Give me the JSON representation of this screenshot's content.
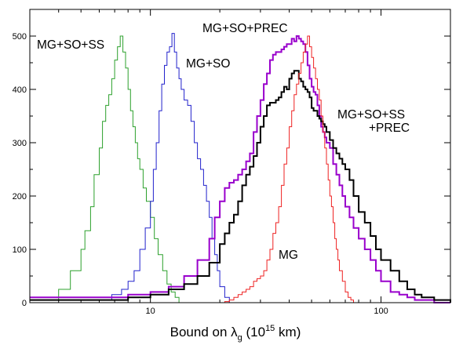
{
  "chart_data": {
    "type": "histogram",
    "x_scale": "log",
    "xlim": [
      3,
      200
    ],
    "ylim": [
      0,
      550
    ],
    "x_ticks": [
      10,
      100
    ],
    "x_tick_labels": [
      "10",
      "100"
    ],
    "y_ticks": [
      0,
      100,
      200,
      300,
      400,
      500
    ],
    "y_tick_labels": [
      "0",
      "100",
      "200",
      "300",
      "400",
      "500"
    ],
    "xlabel": {
      "main": "Bound on λ",
      "sub": "g",
      "paren": " (10",
      "sup": "15",
      "unit": " km)"
    },
    "ylabel": "",
    "grid": false,
    "legend": "none",
    "series": [
      {
        "name": "MG+SO+SS",
        "label_lines": [
          "MG+SO+SS"
        ],
        "color": "#2ca02c",
        "stroke_width": 1,
        "x": [
          3,
          4,
          4.5,
          5,
          5.2,
          5.5,
          5.7,
          6,
          6.2,
          6.4,
          6.6,
          6.8,
          7,
          7.2,
          7.4,
          7.6,
          7.8,
          8,
          8.2,
          8.4,
          8.6,
          8.8,
          9,
          9.3,
          9.6,
          10,
          10.4,
          10.8,
          11.3,
          11.8,
          12.3,
          12.8,
          13.3
        ],
        "y": [
          5,
          25,
          60,
          100,
          135,
          180,
          240,
          290,
          340,
          370,
          390,
          420,
          455,
          480,
          500,
          470,
          440,
          400,
          360,
          330,
          300,
          270,
          250,
          215,
          190,
          160,
          120,
          90,
          60,
          35,
          20,
          10,
          0
        ]
      },
      {
        "name": "MG+SO",
        "label_lines": [
          "MG+SO"
        ],
        "color": "#2222cc",
        "stroke_width": 1,
        "x": [
          6,
          6.8,
          7.5,
          8,
          8.5,
          9,
          9.5,
          10,
          10.3,
          10.6,
          10.9,
          11.2,
          11.5,
          11.8,
          12.1,
          12.4,
          12.7,
          13,
          13.3,
          13.6,
          14,
          14.5,
          15,
          15.5,
          16,
          16.5,
          17,
          17.5,
          18,
          18.5,
          19,
          19.5,
          20,
          21,
          22
        ],
        "y": [
          5,
          15,
          25,
          40,
          60,
          100,
          140,
          190,
          250,
          300,
          360,
          410,
          445,
          470,
          480,
          505,
          470,
          440,
          420,
          400,
          380,
          370,
          340,
          300,
          270,
          250,
          220,
          190,
          160,
          120,
          90,
          60,
          30,
          10,
          0
        ]
      },
      {
        "name": "MG+SO+PREC",
        "label_lines": [
          "MG+SO+PREC"
        ],
        "color": "#9900cc",
        "stroke_width": 2,
        "x": [
          3,
          8,
          10,
          12,
          14,
          16,
          18,
          19,
          20,
          21,
          22,
          23,
          24,
          25,
          26,
          27,
          28,
          29,
          30,
          31,
          32,
          33,
          34,
          35,
          36,
          37,
          38,
          39,
          40,
          41,
          42,
          43,
          44,
          45,
          46,
          47,
          48,
          49,
          50,
          51,
          52,
          53,
          54,
          55,
          56,
          57,
          58,
          60,
          62,
          64,
          66,
          68,
          70,
          73,
          76,
          80,
          85,
          90,
          95,
          100,
          110,
          120,
          130,
          140,
          150,
          170,
          200
        ],
        "y": [
          10,
          15,
          20,
          30,
          50,
          80,
          120,
          160,
          190,
          215,
          225,
          230,
          240,
          250,
          265,
          280,
          320,
          350,
          380,
          410,
          430,
          455,
          465,
          470,
          470,
          475,
          480,
          485,
          485,
          495,
          490,
          500,
          495,
          490,
          485,
          470,
          445,
          420,
          405,
          395,
          390,
          370,
          350,
          330,
          320,
          310,
          300,
          290,
          260,
          240,
          220,
          200,
          180,
          160,
          140,
          120,
          100,
          80,
          60,
          40,
          20,
          15,
          10,
          5,
          5,
          0,
          0
        ]
      },
      {
        "name": "MG+SO+SS+PREC",
        "label_lines": [
          "MG+SO+SS",
          "+PREC"
        ],
        "color": "#000000",
        "stroke_width": 2,
        "x": [
          3,
          8,
          10,
          12,
          14,
          16,
          18,
          20,
          21,
          22,
          23,
          24,
          25,
          26,
          27,
          28,
          29,
          30,
          31,
          32,
          33,
          34,
          35,
          36,
          37,
          38,
          39,
          40,
          41,
          42,
          43,
          44,
          45,
          46,
          47,
          48,
          49,
          50,
          51,
          52,
          53,
          54,
          55,
          56,
          57,
          58,
          60,
          62,
          64,
          66,
          68,
          70,
          73,
          76,
          80,
          85,
          90,
          95,
          100,
          110,
          120,
          130,
          140,
          150,
          170,
          200
        ],
        "y": [
          5,
          10,
          15,
          25,
          35,
          50,
          75,
          110,
          130,
          150,
          165,
          190,
          220,
          240,
          255,
          275,
          300,
          330,
          350,
          370,
          375,
          375,
          380,
          385,
          395,
          405,
          400,
          420,
          430,
          435,
          435,
          420,
          415,
          405,
          400,
          395,
          385,
          365,
          360,
          360,
          350,
          345,
          340,
          335,
          330,
          320,
          305,
          290,
          280,
          270,
          260,
          250,
          230,
          200,
          170,
          150,
          125,
          100,
          80,
          60,
          40,
          25,
          15,
          10,
          5,
          0
        ]
      },
      {
        "name": "MG",
        "label_lines": [
          "MG"
        ],
        "color": "#ee2222",
        "stroke_width": 1,
        "x": [
          20,
          21,
          22,
          23,
          24,
          25,
          26,
          27,
          28,
          29,
          30,
          31,
          32,
          33,
          34,
          35,
          36,
          37,
          38,
          39,
          40,
          41,
          42,
          43,
          44,
          45,
          46,
          47,
          48,
          49,
          50,
          51,
          52,
          53,
          54,
          55,
          56,
          57,
          58,
          59,
          60,
          61,
          62,
          63,
          64,
          65,
          66,
          68,
          70,
          72,
          74,
          76,
          78,
          80
        ],
        "y": [
          0,
          2,
          5,
          10,
          15,
          20,
          25,
          30,
          40,
          45,
          50,
          60,
          80,
          100,
          130,
          150,
          180,
          220,
          260,
          290,
          330,
          360,
          390,
          410,
          430,
          450,
          470,
          485,
          500,
          480,
          460,
          440,
          420,
          400,
          380,
          350,
          320,
          290,
          260,
          230,
          200,
          180,
          150,
          120,
          100,
          80,
          60,
          40,
          20,
          10,
          5,
          0,
          0,
          0
        ]
      }
    ]
  }
}
